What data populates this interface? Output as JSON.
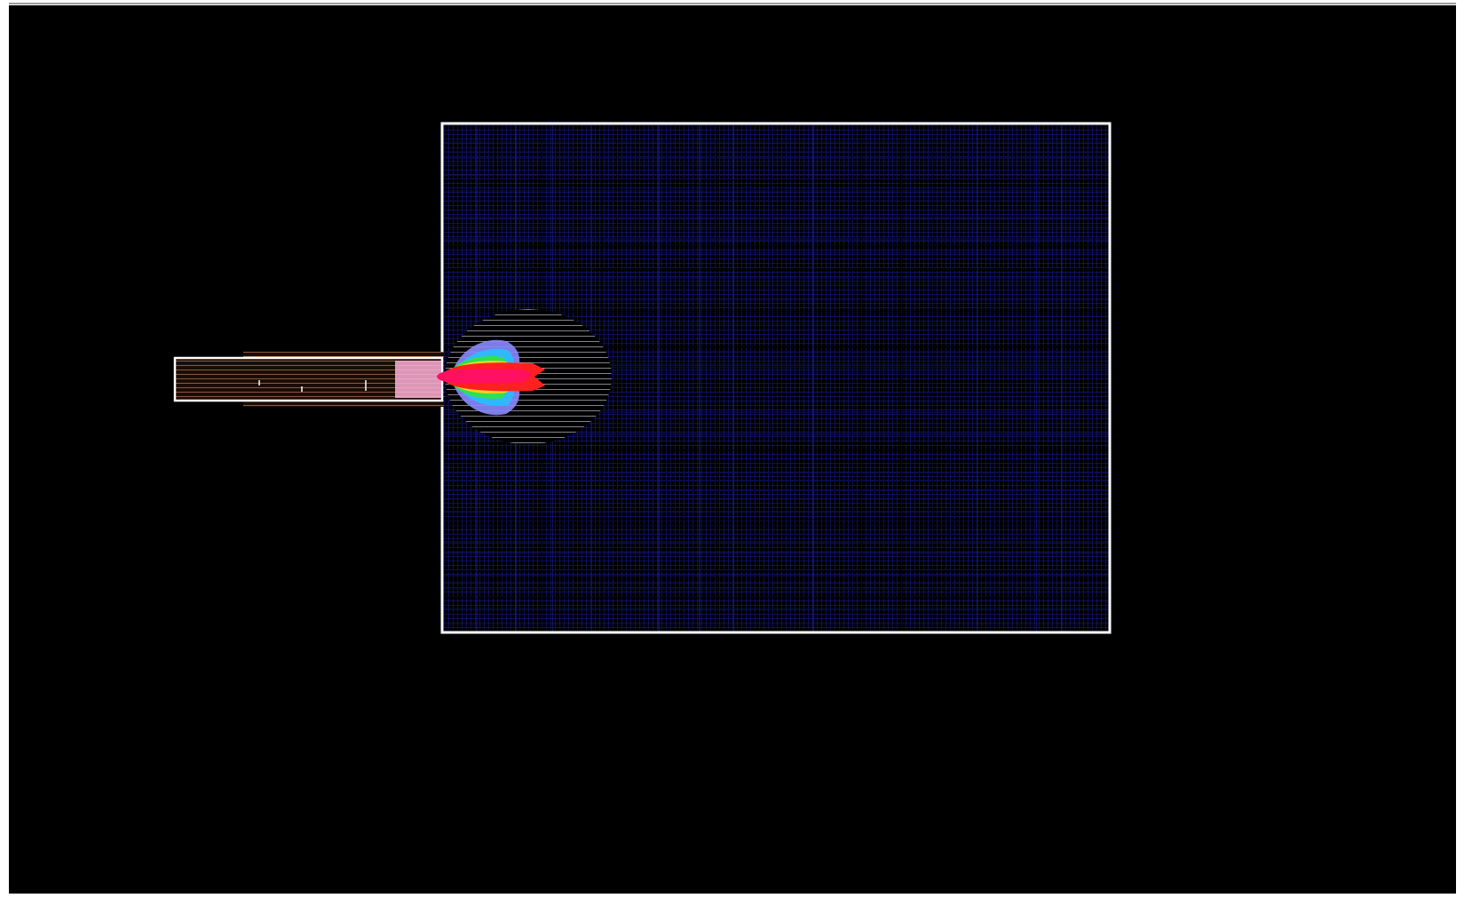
{
  "scene": {
    "type": "cfd-mesh-visualization",
    "background_color": "#000000",
    "domain_outline_color": "#ffffff",
    "mesh_color": "#1a1fa8",
    "mesh_dark_color": "#0a0d4a",
    "nozzle_color": "#f4a67a",
    "nozzle_inner_color": "#ffb0d8",
    "refinement_zone_color": "#d8d8e8",
    "jet_colors": {
      "core": "#ff1060",
      "hot": "#ff2020",
      "warm": "#ffd020",
      "mid": "#30e050",
      "cool": "#30b8ff",
      "cold": "#8a8aff"
    }
  }
}
